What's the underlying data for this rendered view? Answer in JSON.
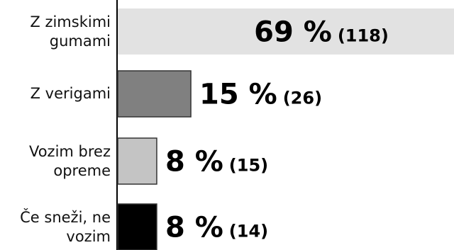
{
  "chart_data": {
    "type": "bar",
    "orientation": "horizontal",
    "categories": [
      "Z zimskimi gumami",
      "Z verigami",
      "Vozim brez opreme",
      "Če sneži, ne vozim"
    ],
    "values": [
      69,
      15,
      8,
      8
    ],
    "value_labels": [
      "69 %",
      "15 %",
      "8 %",
      "8 %"
    ],
    "count_labels": [
      "(118)",
      "(26)",
      "(15)",
      "(14)"
    ],
    "colors": [
      "#e2e2e2",
      "#808080",
      "#c4c4c4",
      "#000000"
    ],
    "xlim": [
      0,
      69
    ]
  }
}
